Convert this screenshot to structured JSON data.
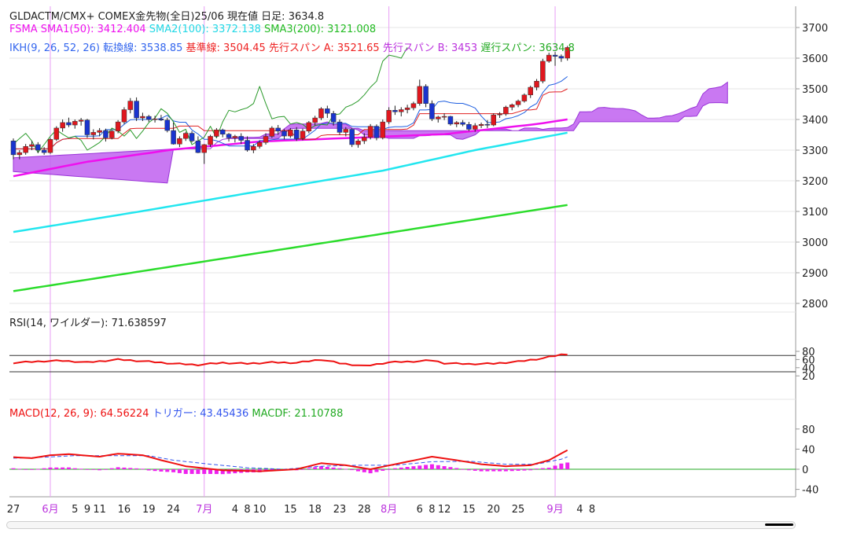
{
  "header": {
    "line1": {
      "symbol": "GLDACTM/CMX+ COMEX金先物(全日)25/06",
      "price_label": "現在値",
      "type_label": "日足:",
      "price": "3634.8"
    },
    "line2": {
      "fsma_label": "FSMA",
      "sma1": "SMA1(50): 3412.404",
      "sma2": "SMA2(100): 3372.138",
      "sma3": "SMA3(200): 3121.008"
    },
    "line3": {
      "ikh": "IKH(9, 26, 52, 26)",
      "tenkan": "転換線: 3538.85",
      "kijun": "基準線: 3504.45",
      "senkouA": "先行スパン A: 3521.65",
      "senkouB": "先行スパン B: 3453",
      "chikou": "遅行スパン: 3634.8"
    },
    "rsi": "RSI(14, ワイルダー): 71.638597",
    "macd": {
      "main": "MACD(12, 26, 9): 64.56224",
      "trigger": "トリガー: 43.45436",
      "macdf": "MACDF: 21.10788"
    }
  },
  "colors": {
    "up": "#e0171e",
    "down": "#1a34cf",
    "sma1": "#ee10ee",
    "sma2": "#22e6ef",
    "sma3": "#2bdc2b",
    "tenkan": "#1f5fe0",
    "kijun": "#e02020",
    "chikou": "#2a9a2a",
    "cloud": "#c060f0",
    "month_line": "#e89ef5",
    "month_label": "#bb33dd",
    "rsi": "#ee1111",
    "macd": "#ee1111",
    "trigger": "#3355ee",
    "hist": "#ee22ee",
    "zero": "#22aa22"
  },
  "chart_data": [
    {
      "type": "candlestick",
      "title": "GLDACTM/CMX+ COMEX金先物(全日)25/06",
      "ylim": [
        2750,
        3750
      ],
      "yticks": [
        2800,
        2900,
        3000,
        3100,
        3200,
        3300,
        3400,
        3500,
        3600,
        3700
      ],
      "x_labels": [
        "27",
        "6月",
        "5",
        "9",
        "11",
        "16",
        "19",
        "24",
        "7月",
        "4",
        "8",
        "10",
        "15",
        "18",
        "23",
        "28",
        "8月",
        "6",
        "8",
        "12",
        "15",
        "20",
        "25",
        "9月",
        "4",
        "8"
      ],
      "x_label_index": [
        0,
        6,
        10,
        12,
        14,
        18,
        22,
        26,
        31,
        36,
        38,
        40,
        45,
        49,
        53,
        57,
        61,
        66,
        68,
        70,
        74,
        78,
        82,
        88,
        92,
        94
      ],
      "month_separators": [
        6,
        31,
        61,
        88
      ],
      "candles": [
        [
          3330,
          3338,
          3270,
          3285
        ],
        [
          3285,
          3300,
          3270,
          3292
        ],
        [
          3292,
          3320,
          3285,
          3312
        ],
        [
          3312,
          3330,
          3300,
          3318
        ],
        [
          3318,
          3326,
          3290,
          3300
        ],
        [
          3300,
          3310,
          3285,
          3292
        ],
        [
          3292,
          3340,
          3288,
          3335
        ],
        [
          3335,
          3378,
          3330,
          3372
        ],
        [
          3372,
          3400,
          3360,
          3390
        ],
        [
          3390,
          3406,
          3375,
          3382
        ],
        [
          3382,
          3400,
          3370,
          3394
        ],
        [
          3394,
          3405,
          3380,
          3398
        ],
        [
          3398,
          3402,
          3340,
          3350
        ],
        [
          3350,
          3368,
          3335,
          3358
        ],
        [
          3358,
          3372,
          3345,
          3364
        ],
        [
          3364,
          3370,
          3328,
          3340
        ],
        [
          3340,
          3368,
          3335,
          3362
        ],
        [
          3362,
          3398,
          3355,
          3392
        ],
        [
          3392,
          3440,
          3385,
          3432
        ],
        [
          3432,
          3470,
          3420,
          3460
        ],
        [
          3460,
          3472,
          3395,
          3405
        ],
        [
          3405,
          3422,
          3395,
          3410
        ],
        [
          3410,
          3415,
          3392,
          3400
        ],
        [
          3400,
          3412,
          3390,
          3402
        ],
        [
          3402,
          3415,
          3395,
          3398
        ],
        [
          3398,
          3406,
          3358,
          3364
        ],
        [
          3364,
          3390,
          3318,
          3320
        ],
        [
          3320,
          3345,
          3310,
          3338
        ],
        [
          3338,
          3360,
          3330,
          3355
        ],
        [
          3355,
          3362,
          3325,
          3330
        ],
        [
          3330,
          3345,
          3290,
          3292
        ],
        [
          3292,
          3320,
          3255,
          3318
        ],
        [
          3318,
          3350,
          3310,
          3345
        ],
        [
          3345,
          3372,
          3340,
          3366
        ],
        [
          3366,
          3370,
          3342,
          3352
        ],
        [
          3352,
          3356,
          3328,
          3340
        ],
        [
          3340,
          3350,
          3325,
          3345
        ],
        [
          3345,
          3355,
          3320,
          3332
        ],
        [
          3332,
          3345,
          3295,
          3300
        ],
        [
          3300,
          3320,
          3290,
          3312
        ],
        [
          3312,
          3332,
          3305,
          3325
        ],
        [
          3325,
          3355,
          3318,
          3345
        ],
        [
          3345,
          3378,
          3340,
          3372
        ],
        [
          3372,
          3382,
          3350,
          3362
        ],
        [
          3362,
          3368,
          3335,
          3346
        ],
        [
          3346,
          3372,
          3340,
          3366
        ],
        [
          3366,
          3375,
          3330,
          3338
        ],
        [
          3338,
          3370,
          3332,
          3362
        ],
        [
          3362,
          3395,
          3355,
          3390
        ],
        [
          3390,
          3412,
          3380,
          3405
        ],
        [
          3405,
          3440,
          3398,
          3435
        ],
        [
          3435,
          3445,
          3405,
          3420
        ],
        [
          3420,
          3428,
          3380,
          3392
        ],
        [
          3392,
          3400,
          3350,
          3358
        ],
        [
          3358,
          3375,
          3345,
          3368
        ],
        [
          3368,
          3372,
          3310,
          3318
        ],
        [
          3318,
          3336,
          3308,
          3330
        ],
        [
          3330,
          3355,
          3320,
          3342
        ],
        [
          3342,
          3385,
          3335,
          3378
        ],
        [
          3378,
          3384,
          3332,
          3340
        ],
        [
          3340,
          3400,
          3335,
          3392
        ],
        [
          3392,
          3440,
          3385,
          3430
        ],
        [
          3430,
          3445,
          3415,
          3425
        ],
        [
          3425,
          3440,
          3410,
          3432
        ],
        [
          3432,
          3448,
          3420,
          3438
        ],
        [
          3438,
          3458,
          3430,
          3452
        ],
        [
          3452,
          3530,
          3445,
          3508
        ],
        [
          3508,
          3515,
          3440,
          3452
        ],
        [
          3452,
          3462,
          3395,
          3402
        ],
        [
          3402,
          3412,
          3390,
          3408
        ],
        [
          3408,
          3420,
          3398,
          3410
        ],
        [
          3410,
          3412,
          3380,
          3385
        ],
        [
          3385,
          3395,
          3375,
          3390
        ],
        [
          3390,
          3398,
          3378,
          3384
        ],
        [
          3384,
          3392,
          3362,
          3368
        ],
        [
          3368,
          3388,
          3360,
          3380
        ],
        [
          3380,
          3390,
          3372,
          3384
        ],
        [
          3384,
          3398,
          3372,
          3382
        ],
        [
          3382,
          3420,
          3378,
          3415
        ],
        [
          3415,
          3424,
          3405,
          3418
        ],
        [
          3418,
          3445,
          3412,
          3440
        ],
        [
          3440,
          3452,
          3430,
          3448
        ],
        [
          3448,
          3465,
          3440,
          3460
        ],
        [
          3460,
          3485,
          3455,
          3480
        ],
        [
          3480,
          3510,
          3470,
          3505
        ],
        [
          3505,
          3532,
          3495,
          3525
        ],
        [
          3525,
          3598,
          3518,
          3590
        ],
        [
          3590,
          3618,
          3585,
          3610
        ],
        [
          3610,
          3620,
          3575,
          3606
        ],
        [
          3606,
          3612,
          3588,
          3600
        ],
        [
          3600,
          3640,
          3592,
          3634.8
        ]
      ],
      "sma1": {
        "name": "SMA1(50)",
        "start": 3220,
        "end": 3412.404
      },
      "sma2": {
        "name": "SMA2(100)",
        "start": 3033,
        "end": 3372.138
      },
      "sma3": {
        "name": "SMA3(200)",
        "start": 2840,
        "end": 3121.008
      },
      "tenkan_end": 3538.85,
      "kijun_end": 3504.45,
      "senkouA_end": 3521.65,
      "senkouB_end": 3453,
      "chikou_last": 3634.8
    },
    {
      "type": "line",
      "title": "RSI(14, ワイルダー)",
      "ylim": [
        15,
        90
      ],
      "yticks": [
        20,
        40,
        60,
        80
      ],
      "levels": [
        70,
        30
      ],
      "last": 71.638597
    },
    {
      "type": "line",
      "title": "MACD(12, 26, 9)",
      "ylim": [
        -50,
        95
      ],
      "yticks": [
        -40,
        0,
        40,
        80
      ],
      "macd_last": 64.56224,
      "trigger_last": 43.45436,
      "macdf_last": 21.10788
    }
  ]
}
